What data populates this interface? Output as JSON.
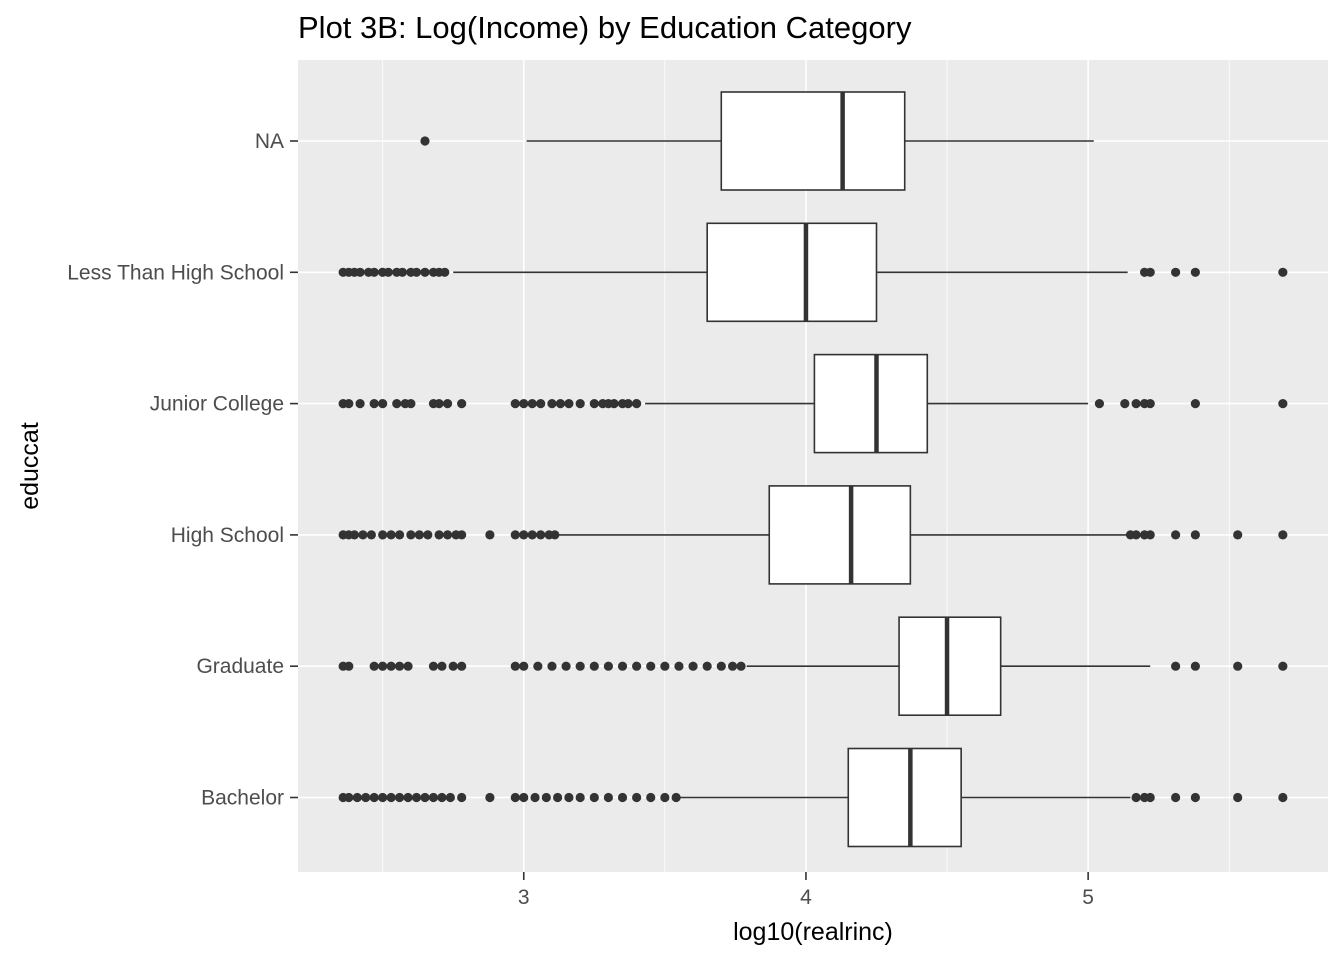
{
  "chart_data": {
    "type": "boxplot",
    "title": "Plot 3B: Log(Income) by Education Category",
    "xlabel": "log10(realrinc)",
    "ylabel": "educcat",
    "xlim": [
      2.2,
      5.85
    ],
    "x_ticks": [
      3,
      4,
      5
    ],
    "x_tick_labels": [
      "3",
      "4",
      "5"
    ],
    "orientation": "horizontal",
    "grid": true,
    "categories": [
      "NA",
      "Less Than High School",
      "Junior College",
      "High School",
      "Graduate",
      "Bachelor"
    ],
    "boxes": [
      {
        "category": "NA",
        "q1": 3.7,
        "median": 4.13,
        "q3": 4.35,
        "whisker_low": 3.01,
        "whisker_high": 5.02,
        "outliers": [
          2.65
        ]
      },
      {
        "category": "Less Than High School",
        "q1": 3.65,
        "median": 4.0,
        "q3": 4.25,
        "whisker_low": 2.75,
        "whisker_high": 5.14,
        "outliers": [
          2.36,
          2.38,
          2.4,
          2.42,
          2.45,
          2.47,
          2.5,
          2.52,
          2.55,
          2.57,
          2.6,
          2.62,
          2.65,
          2.68,
          2.7,
          2.72,
          5.2,
          5.22,
          5.31,
          5.38,
          5.69
        ]
      },
      {
        "category": "Junior College",
        "q1": 4.03,
        "median": 4.25,
        "q3": 4.43,
        "whisker_low": 3.43,
        "whisker_high": 5.0,
        "outliers": [
          2.36,
          2.38,
          2.42,
          2.47,
          2.5,
          2.55,
          2.58,
          2.6,
          2.68,
          2.7,
          2.73,
          2.78,
          2.97,
          3.0,
          3.03,
          3.06,
          3.1,
          3.13,
          3.16,
          3.2,
          3.25,
          3.28,
          3.3,
          3.32,
          3.35,
          3.37,
          3.4,
          5.04,
          5.13,
          5.17,
          5.2,
          5.22,
          5.38,
          5.69
        ]
      },
      {
        "category": "High School",
        "q1": 3.87,
        "median": 4.16,
        "q3": 4.37,
        "whisker_low": 3.12,
        "whisker_high": 5.14,
        "outliers": [
          2.36,
          2.38,
          2.4,
          2.43,
          2.46,
          2.5,
          2.53,
          2.56,
          2.6,
          2.63,
          2.66,
          2.7,
          2.73,
          2.76,
          2.78,
          2.88,
          2.97,
          3.0,
          3.03,
          3.06,
          3.09,
          3.11,
          5.15,
          5.17,
          5.2,
          5.22,
          5.31,
          5.38,
          5.53,
          5.69
        ]
      },
      {
        "category": "Graduate",
        "q1": 4.33,
        "median": 4.5,
        "q3": 4.69,
        "whisker_low": 3.79,
        "whisker_high": 5.22,
        "outliers": [
          2.36,
          2.38,
          2.47,
          2.5,
          2.53,
          2.56,
          2.59,
          2.68,
          2.71,
          2.75,
          2.78,
          2.97,
          3.0,
          3.05,
          3.1,
          3.15,
          3.2,
          3.25,
          3.3,
          3.35,
          3.4,
          3.45,
          3.5,
          3.55,
          3.6,
          3.65,
          3.7,
          3.74,
          3.77,
          5.31,
          5.38,
          5.53,
          5.69
        ]
      },
      {
        "category": "Bachelor",
        "q1": 4.15,
        "median": 4.37,
        "q3": 4.55,
        "whisker_low": 3.55,
        "whisker_high": 5.15,
        "outliers": [
          2.36,
          2.38,
          2.41,
          2.44,
          2.47,
          2.5,
          2.53,
          2.56,
          2.59,
          2.62,
          2.65,
          2.68,
          2.71,
          2.74,
          2.78,
          2.88,
          2.97,
          3.0,
          3.04,
          3.08,
          3.12,
          3.16,
          3.2,
          3.25,
          3.3,
          3.35,
          3.4,
          3.45,
          3.5,
          3.54,
          5.17,
          5.2,
          5.22,
          5.31,
          5.38,
          5.53,
          5.69
        ]
      }
    ],
    "colors": {
      "panel_background": "#ebebeb",
      "grid": "#ffffff",
      "box_fill": "#ffffff",
      "box_stroke": "#333333",
      "tick_text": "#4d4d4d",
      "tick_mark": "#333333"
    }
  }
}
